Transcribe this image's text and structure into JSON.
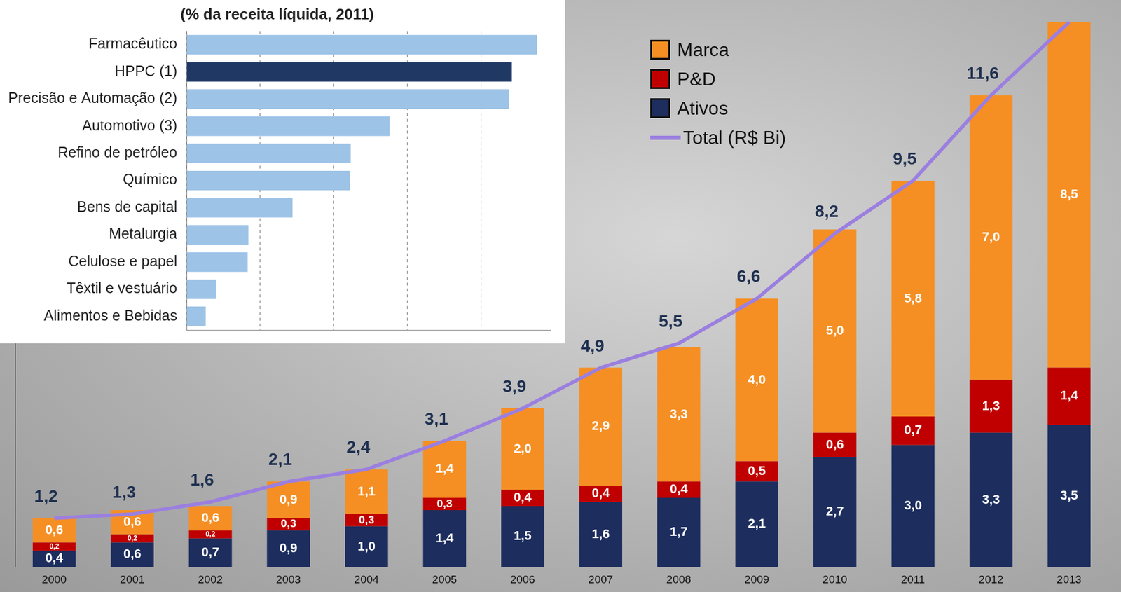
{
  "chart_data": [
    {
      "type": "bar",
      "title": "(% da receita líquida, 2011)",
      "orientation": "horizontal",
      "categories": [
        "Farmacêutico",
        "HPPC (1)",
        "Precisão e Automação (2)",
        "Automotivo (3)",
        "Refino de petróleo",
        "Químico",
        "Bens de capital",
        "Metalurgia",
        "Celulose e papel",
        "Têxtil e vestuário",
        "Alimentos e Bebidas"
      ],
      "values": [
        4.76,
        4.42,
        4.38,
        2.76,
        2.23,
        2.22,
        1.44,
        0.84,
        0.83,
        0.4,
        0.26
      ],
      "colors": [
        "#9dc3e6",
        "#1f3864",
        "#9dc3e6",
        "#9dc3e6",
        "#9dc3e6",
        "#9dc3e6",
        "#9dc3e6",
        "#9dc3e6",
        "#9dc3e6",
        "#9dc3e6",
        "#9dc3e6"
      ],
      "xlim": [
        0,
        4.95
      ],
      "xticks": [
        0,
        1,
        2,
        3,
        4
      ],
      "grid": true,
      "tick_labels": "y"
    },
    {
      "type": "bar",
      "stacked": true,
      "categories": [
        "2000",
        "2001",
        "2002",
        "2003",
        "2004",
        "2005",
        "2006",
        "2007",
        "2008",
        "2009",
        "2010",
        "2011",
        "2012",
        "2013"
      ],
      "series": [
        {
          "name": "Marca",
          "color": "#f58f24",
          "values": [
            0.6,
            0.6,
            0.6,
            0.9,
            1.1,
            1.4,
            2.0,
            2.9,
            3.3,
            4.0,
            5.0,
            5.8,
            7.0,
            8.5
          ],
          "value_labels": [
            "0,6",
            "0,6",
            "0,6",
            "0,9",
            "1,1",
            "1,4",
            "2,0",
            "2,9",
            "3,3",
            "4,0",
            "5,0",
            "5,8",
            "7,0",
            "8,5"
          ]
        },
        {
          "name": "P&D",
          "color": "#c00000",
          "values": [
            0.2,
            0.2,
            0.2,
            0.3,
            0.3,
            0.3,
            0.4,
            0.4,
            0.4,
            0.5,
            0.6,
            0.7,
            1.3,
            1.4
          ],
          "value_labels": [
            "0,2",
            "0,2",
            "0,2",
            "0,3",
            "0,3",
            "0,3",
            "0,4",
            "0,4",
            "0,4",
            "0,5",
            "0,6",
            "0,7",
            "1,3",
            "1,4"
          ]
        },
        {
          "name": "Ativos",
          "color": "#1c2d5e",
          "values": [
            0.4,
            0.6,
            0.7,
            0.9,
            1.0,
            1.4,
            1.5,
            1.6,
            1.7,
            2.1,
            2.7,
            3.0,
            3.3,
            3.5
          ],
          "value_labels": [
            "0,4",
            "0,6",
            "0,7",
            "0,9",
            "1,0",
            "1,4",
            "1,5",
            "1,6",
            "1,7",
            "2,1",
            "2,7",
            "3,0",
            "3,3",
            "3,5"
          ]
        },
        {
          "name": "Total (R$ Bi)",
          "type": "line",
          "color": "#9b7fe0",
          "values": [
            1.2,
            1.3,
            1.6,
            2.1,
            2.4,
            3.1,
            3.9,
            4.9,
            5.5,
            6.6,
            8.2,
            9.5,
            11.6,
            13.4
          ],
          "value_labels": [
            "1,2",
            "1,3",
            "1,6",
            "2,1",
            "2,4",
            "3,1",
            "3,9",
            "4,9",
            "5,5",
            "6,6",
            "8,2",
            "9,5",
            "11,6",
            null
          ]
        }
      ],
      "ylim": [
        0,
        13.8
      ],
      "grid": false,
      "tick_labels": "x",
      "legend": "top",
      "data_labels": true
    }
  ]
}
